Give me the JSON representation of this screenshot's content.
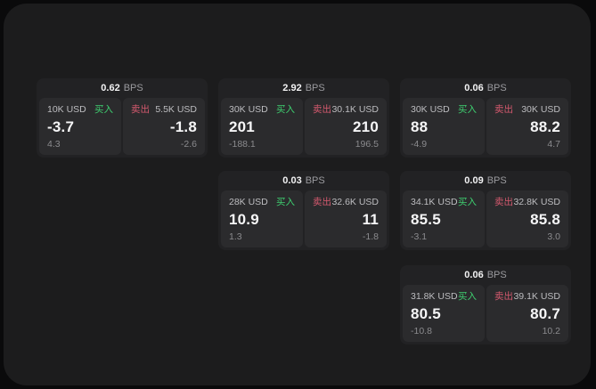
{
  "labels": {
    "bps_unit": "BPS",
    "buy": "买入",
    "sell": "卖出"
  },
  "colors": {
    "background": "#0a0a0b",
    "panel": "#1c1c1d",
    "card": "#222224",
    "subpanel": "#2b2b2d",
    "buy_accent": "#3ecf70",
    "sell_accent": "#d4596e"
  },
  "cards": [
    {
      "bps": "0.62",
      "buy": {
        "size": "10K USD",
        "value": "-3.7",
        "delta": "4.3"
      },
      "sell": {
        "size": "5.5K USD",
        "value": "-1.8",
        "delta": "-2.6"
      }
    },
    {
      "bps": "2.92",
      "buy": {
        "size": "30K USD",
        "value": "201",
        "delta": "-188.1"
      },
      "sell": {
        "size": "30.1K USD",
        "value": "210",
        "delta": "196.5"
      }
    },
    {
      "bps": "0.06",
      "buy": {
        "size": "30K USD",
        "value": "88",
        "delta": "-4.9"
      },
      "sell": {
        "size": "30K USD",
        "value": "88.2",
        "delta": "4.7"
      }
    },
    {
      "bps": "0.03",
      "buy": {
        "size": "28K USD",
        "value": "10.9",
        "delta": "1.3"
      },
      "sell": {
        "size": "32.6K USD",
        "value": "11",
        "delta": "-1.8"
      }
    },
    {
      "bps": "0.09",
      "buy": {
        "size": "34.1K USD",
        "value": "85.5",
        "delta": "-3.1"
      },
      "sell": {
        "size": "32.8K USD",
        "value": "85.8",
        "delta": "3.0"
      }
    },
    {
      "bps": "0.06",
      "buy": {
        "size": "31.8K USD",
        "value": "80.5",
        "delta": "-10.8"
      },
      "sell": {
        "size": "39.1K USD",
        "value": "80.7",
        "delta": "10.2"
      }
    }
  ]
}
